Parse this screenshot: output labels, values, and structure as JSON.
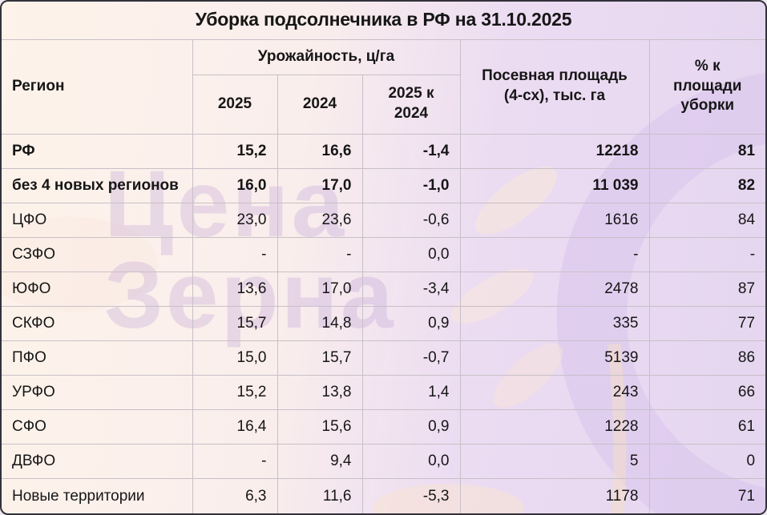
{
  "chart_data": {
    "type": "table",
    "title": "Уборка подсолнечника в РФ на 31.10.2025",
    "header": {
      "region": "Регион",
      "yield_group": "Урожайность, ц/га",
      "yield_2025": "2025",
      "yield_2024": "2024",
      "yield_diff": "2025 к 2024",
      "area": "Посевная площадь (4-сх), тыс. га",
      "pct": "% к площади уборки"
    },
    "rows": [
      {
        "region": "РФ",
        "y2025": "15,2",
        "y2024": "16,6",
        "diff": "-1,4",
        "area": "12218",
        "pct": "81",
        "bold": true
      },
      {
        "region": "без 4 новых регионов",
        "y2025": "16,0",
        "y2024": "17,0",
        "diff": "-1,0",
        "area": "11 039",
        "pct": "82",
        "bold": true
      },
      {
        "region": "ЦФО",
        "y2025": "23,0",
        "y2024": "23,6",
        "diff": "-0,6",
        "area": "1616",
        "pct": "84",
        "bold": false
      },
      {
        "region": "СЗФО",
        "y2025": "-",
        "y2024": "-",
        "diff": "0,0",
        "area": "-",
        "pct": "-",
        "bold": false
      },
      {
        "region": "ЮФО",
        "y2025": "13,6",
        "y2024": "17,0",
        "diff": "-3,4",
        "area": "2478",
        "pct": "87",
        "bold": false
      },
      {
        "region": "СКФО",
        "y2025": "15,7",
        "y2024": "14,8",
        "diff": "0,9",
        "area": "335",
        "pct": "77",
        "bold": false
      },
      {
        "region": "ПФО",
        "y2025": "15,0",
        "y2024": "15,7",
        "diff": "-0,7",
        "area": "5139",
        "pct": "86",
        "bold": false
      },
      {
        "region": "УРФО",
        "y2025": "15,2",
        "y2024": "13,8",
        "diff": "1,4",
        "area": "243",
        "pct": "66",
        "bold": false
      },
      {
        "region": "СФО",
        "y2025": "16,4",
        "y2024": "15,6",
        "diff": "0,9",
        "area": "1228",
        "pct": "61",
        "bold": false
      },
      {
        "region": "ДВФО",
        "y2025": "-",
        "y2024": "9,4",
        "diff": "0,0",
        "area": "5",
        "pct": "0",
        "bold": false
      },
      {
        "region": "Новые территории",
        "y2025": "6,3",
        "y2024": "11,6",
        "diff": "-5,3",
        "area": "1178",
        "pct": "71",
        "bold": false
      }
    ]
  },
  "watermark": {
    "line1": "Цена",
    "line2": "Зерна"
  },
  "colors": {
    "bg_left": "#fdf3ea",
    "bg_right": "#e5d6f0",
    "grid": "#c7c0c7",
    "text": "#161616",
    "frame_border": "#33313a",
    "watermark": "#a580cd",
    "wheat_ring": "#d9c4ec",
    "leaf_cream": "#f9e7d9"
  }
}
